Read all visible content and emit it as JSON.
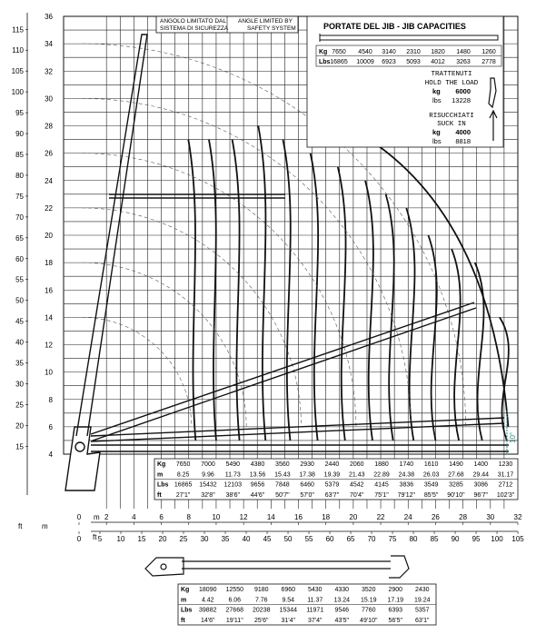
{
  "axes": {
    "m_label": "m",
    "ft_label": "ft",
    "x_m_ticks": [
      "0",
      "2",
      "4",
      "6",
      "8",
      "10",
      "12",
      "14",
      "16",
      "18",
      "20",
      "22",
      "24",
      "26",
      "28",
      "30",
      "32"
    ],
    "x_ft_ticks": [
      "0",
      "5",
      "10",
      "15",
      "20",
      "25",
      "30",
      "35",
      "40",
      "45",
      "50",
      "55",
      "60",
      "65",
      "70",
      "75",
      "80",
      "85",
      "90",
      "95",
      "100",
      "105"
    ],
    "y_m_ticks": [
      "4",
      "6",
      "8",
      "10",
      "12",
      "14",
      "16",
      "18",
      "20",
      "22",
      "24",
      "26",
      "28",
      "30",
      "32",
      "34",
      "36"
    ],
    "y_ft_ticks": [
      "15",
      "20",
      "25",
      "30",
      "35",
      "40",
      "45",
      "50",
      "55",
      "60",
      "65",
      "70",
      "75",
      "80",
      "85",
      "90",
      "95",
      "100",
      "105",
      "110",
      "115"
    ]
  },
  "safety_note": {
    "it_line1": "ANGOLO LIMITATO DAL",
    "it_line2": "SISTEMA DI SICUREZZA",
    "en_line1": "ANGLE LIMITED BY",
    "en_line2": "SAFETY SYSTEM"
  },
  "jib_panel": {
    "title": "PORTATE DEL JIB  -  JIB CAPACITIES",
    "kg_label": "Kg",
    "lbs_label": "Lbs",
    "kg": [
      "7650",
      "4540",
      "3140",
      "2310",
      "1820",
      "1480",
      "1260"
    ],
    "lbs": [
      "16865",
      "10009",
      "6923",
      "5093",
      "4012",
      "3263",
      "2778"
    ],
    "hold_it": "TRATTENUTI",
    "hold_en": "HOLD THE LOAD",
    "hold_kg_label": "kg",
    "hold_kg": "6000",
    "hold_lbs_label": "lbs",
    "hold_lbs": "13228",
    "suck_it": "RISUCCHIATI",
    "suck_en": "SUCK IN",
    "suck_kg_label": "kg",
    "suck_kg": "4000",
    "suck_lbs_label": "lbs",
    "suck_lbs": "8818"
  },
  "angle_label": "10°",
  "main_table": {
    "row_labels": [
      "Kg",
      "m",
      "Lbs",
      "ft"
    ],
    "kg": [
      "7650",
      "7000",
      "5490",
      "4380",
      "3560",
      "2930",
      "2440",
      "2060",
      "1880",
      "1740",
      "1610",
      "1490",
      "1400",
      "1230"
    ],
    "m": [
      "8.25",
      "9.96",
      "11.73",
      "13.56",
      "15.43",
      "17.38",
      "19.39",
      "21.43",
      "22.89",
      "24.38",
      "26.03",
      "27.68",
      "29.44",
      "31.17"
    ],
    "lbs": [
      "16865",
      "15432",
      "12103",
      "9656",
      "7848",
      "6460",
      "5379",
      "4542",
      "4145",
      "3836",
      "3549",
      "3285",
      "3086",
      "2712"
    ],
    "ft": [
      "27'1\"",
      "32'8\"",
      "38'6\"",
      "44'6\"",
      "50'7\"",
      "57'0\"",
      "63'7\"",
      "70'4\"",
      "75'1\"",
      "79'12\"",
      "85'5\"",
      "90'10\"",
      "96'7\"",
      "102'3\""
    ]
  },
  "bottom_table": {
    "row_labels": [
      "Kg",
      "m",
      "Lbs",
      "ft"
    ],
    "kg": [
      "18090",
      "12550",
      "9180",
      "6960",
      "5430",
      "4330",
      "3520",
      "2900",
      "2430"
    ],
    "m": [
      "4.42",
      "6.06",
      "7.76",
      "9.54",
      "11.37",
      "13.24",
      "15.19",
      "17.19",
      "19.24"
    ],
    "lbs": [
      "39882",
      "27668",
      "20238",
      "15344",
      "11971",
      "9546",
      "7760",
      "6393",
      "5357"
    ],
    "ft": [
      "14'6\"",
      "19'11\"",
      "25'6\"",
      "31'4\"",
      "37'4\"",
      "43'5\"",
      "49'10\"",
      "56'5\"",
      "63'1\""
    ]
  }
}
